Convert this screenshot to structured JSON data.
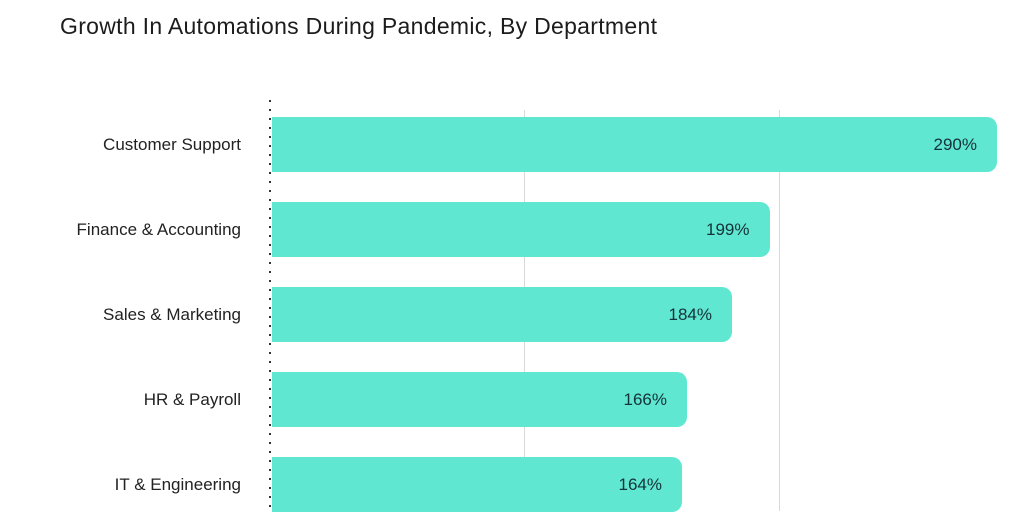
{
  "title": "Growth In Automations During Pandemic, By Department",
  "colors": {
    "background": "#ffffff",
    "bar": "#60e7d2",
    "grid": "#d9d9d9",
    "axis_dots": "#333333",
    "title_text": "#1c1c1c",
    "category_label_text": "#222222",
    "value_label_text": "#14323a"
  },
  "chart_data": {
    "type": "bar",
    "orientation": "horizontal",
    "title": "Growth In Automations During Pandemic, By Department",
    "categories": [
      "Customer Support",
      "Finance & Accounting",
      "Sales & Marketing",
      "HR & Payroll",
      "IT & Engineering"
    ],
    "values": [
      290,
      199,
      184,
      166,
      164
    ],
    "value_labels": [
      "290%",
      "199%",
      "184%",
      "166%",
      "164%"
    ],
    "unit": "%",
    "xlabel": "",
    "ylabel": "",
    "xlim": [
      0,
      300
    ],
    "grid": "vertical gridlines, dotted zero axis line",
    "value_label_position": "inside-end",
    "legend": "none",
    "sort_order": "descending"
  }
}
